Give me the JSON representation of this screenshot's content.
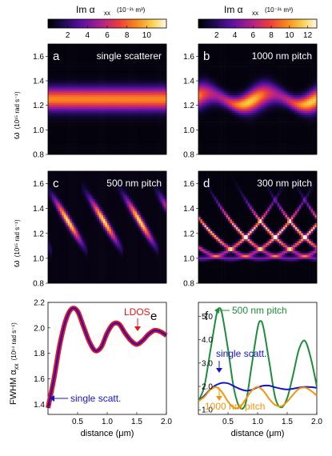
{
  "colorbars": [
    {
      "label_main": "Im α",
      "label_sub": "xx",
      "units": "(10⁻²¹ m³)",
      "ticks": [
        "2",
        "4",
        "6",
        "8",
        "10"
      ],
      "range": [
        0,
        12
      ]
    },
    {
      "label_main": "Im α",
      "label_sub": "xx",
      "units": "(10⁻²¹ m³)",
      "ticks": [
        "2",
        "4",
        "6",
        "8",
        "10",
        "12"
      ],
      "range": [
        0,
        13
      ]
    }
  ],
  "panels": [
    {
      "letter": "a",
      "title": "single scatterer",
      "pitch": 0,
      "peak": 0.72
    },
    {
      "letter": "b",
      "title": "1000 nm pitch",
      "pitch": 1000,
      "peak": 0.85
    },
    {
      "letter": "c",
      "title": "500 nm pitch",
      "pitch": 500,
      "peak": 0.92
    },
    {
      "letter": "d",
      "title": "300 nm pitch",
      "pitch": 300,
      "peak": 0.88
    }
  ],
  "heatmap_axis": {
    "ylabel_main": "ω",
    "ylabel_units": "(10¹⁵ rad s⁻¹)",
    "yticks": [
      "0.8",
      "1.0",
      "1.2",
      "1.4",
      "1.6"
    ],
    "ylim": [
      0.8,
      1.7
    ]
  },
  "chart_data": [
    {
      "type": "line",
      "panel": "e",
      "xlabel": "distance (μm)",
      "ylabel_main": "FWHM α",
      "ylabel_sub": "xx",
      "ylabel_units": "(10¹⁴ rad s⁻¹)",
      "xlim": [
        0,
        2.0
      ],
      "ylim": [
        1.32,
        2.2
      ],
      "xticks": [
        "0.5",
        "1.0",
        "1.5",
        "2.0"
      ],
      "yticks": [
        "1.4",
        "1.6",
        "1.8",
        "2.0",
        "2.2"
      ],
      "series": [
        {
          "name": "LDOS",
          "color": "#e8141b",
          "x": [
            0,
            0.1,
            0.2,
            0.3,
            0.4,
            0.5,
            0.6,
            0.7,
            0.8,
            0.9,
            1.0,
            1.1,
            1.2,
            1.3,
            1.4,
            1.5,
            1.6,
            1.7,
            1.8,
            1.9,
            2.0
          ],
          "y": [
            1.37,
            1.6,
            1.87,
            2.06,
            2.15,
            2.13,
            2.01,
            1.89,
            1.82,
            1.85,
            1.96,
            2.03,
            2.03,
            1.96,
            1.9,
            1.87,
            1.9,
            1.95,
            1.98,
            1.97,
            1.94
          ]
        },
        {
          "name": "single scatt.",
          "color": "#1414c8",
          "x": [
            0,
            0.1,
            0.2,
            0.3,
            0.4,
            0.5,
            0.6,
            0.7,
            0.8,
            0.9,
            1.0,
            1.1,
            1.2,
            1.3,
            1.4,
            1.5,
            1.6,
            1.7,
            1.8,
            1.9,
            2.0
          ],
          "y": [
            1.37,
            1.6,
            1.87,
            2.06,
            2.15,
            2.13,
            2.01,
            1.89,
            1.82,
            1.85,
            1.96,
            2.03,
            2.03,
            1.96,
            1.9,
            1.87,
            1.9,
            1.95,
            1.98,
            1.97,
            1.94
          ]
        }
      ],
      "annotations": [
        "LDOS",
        "single scatt."
      ]
    },
    {
      "type": "line",
      "panel": "f",
      "xlabel": "distance (μm)",
      "xlim": [
        0,
        2.0
      ],
      "ylim": [
        0.8,
        5.6
      ],
      "xticks": [
        "0.5",
        "1.0",
        "1.5",
        "2.0"
      ],
      "yticks": [
        "1.0",
        "2.0",
        "3.0",
        "4.0",
        "5.0"
      ],
      "series": [
        {
          "name": "500 nm pitch",
          "color": "#1e8c3a",
          "x": [
            0,
            0.1,
            0.2,
            0.3,
            0.35,
            0.4,
            0.5,
            0.6,
            0.7,
            0.8,
            0.9,
            1.0,
            1.05,
            1.1,
            1.2,
            1.3,
            1.4,
            1.5,
            1.6,
            1.7,
            1.8,
            1.9,
            2.0
          ],
          "y": [
            1.37,
            2.0,
            3.5,
            5.0,
            5.35,
            5.1,
            3.6,
            1.9,
            1.1,
            1.3,
            2.9,
            4.5,
            4.8,
            4.5,
            3.0,
            1.5,
            1.1,
            1.5,
            2.5,
            3.6,
            3.95,
            3.2,
            2.0
          ]
        },
        {
          "name": "single scatt.",
          "color": "#1414c8",
          "x": [
            0,
            0.1,
            0.2,
            0.3,
            0.4,
            0.5,
            0.6,
            0.7,
            0.8,
            0.9,
            1.0,
            1.1,
            1.2,
            1.3,
            1.4,
            1.5,
            1.6,
            1.7,
            1.8,
            1.9,
            2.0
          ],
          "y": [
            1.37,
            1.6,
            1.87,
            2.06,
            2.15,
            2.13,
            2.01,
            1.89,
            1.82,
            1.85,
            1.96,
            2.03,
            2.03,
            1.96,
            1.9,
            1.87,
            1.9,
            1.95,
            1.98,
            1.97,
            1.94
          ]
        },
        {
          "name": "1000 nm pitch",
          "color": "#f0960a",
          "x": [
            0,
            0.1,
            0.2,
            0.3,
            0.4,
            0.5,
            0.6,
            0.7,
            0.8,
            0.9,
            1.0,
            1.1,
            1.2,
            1.3,
            1.4,
            1.5,
            1.6,
            1.7,
            1.8,
            1.9,
            2.0
          ],
          "y": [
            1.37,
            1.55,
            1.85,
            1.97,
            1.75,
            1.35,
            1.08,
            1.12,
            1.45,
            1.82,
            1.98,
            1.8,
            1.45,
            1.2,
            1.15,
            1.35,
            1.65,
            1.9,
            1.95,
            1.82,
            1.6
          ]
        }
      ],
      "annotations": [
        "500 nm pitch",
        "single scatt.",
        "1000 nm pitch"
      ]
    }
  ]
}
